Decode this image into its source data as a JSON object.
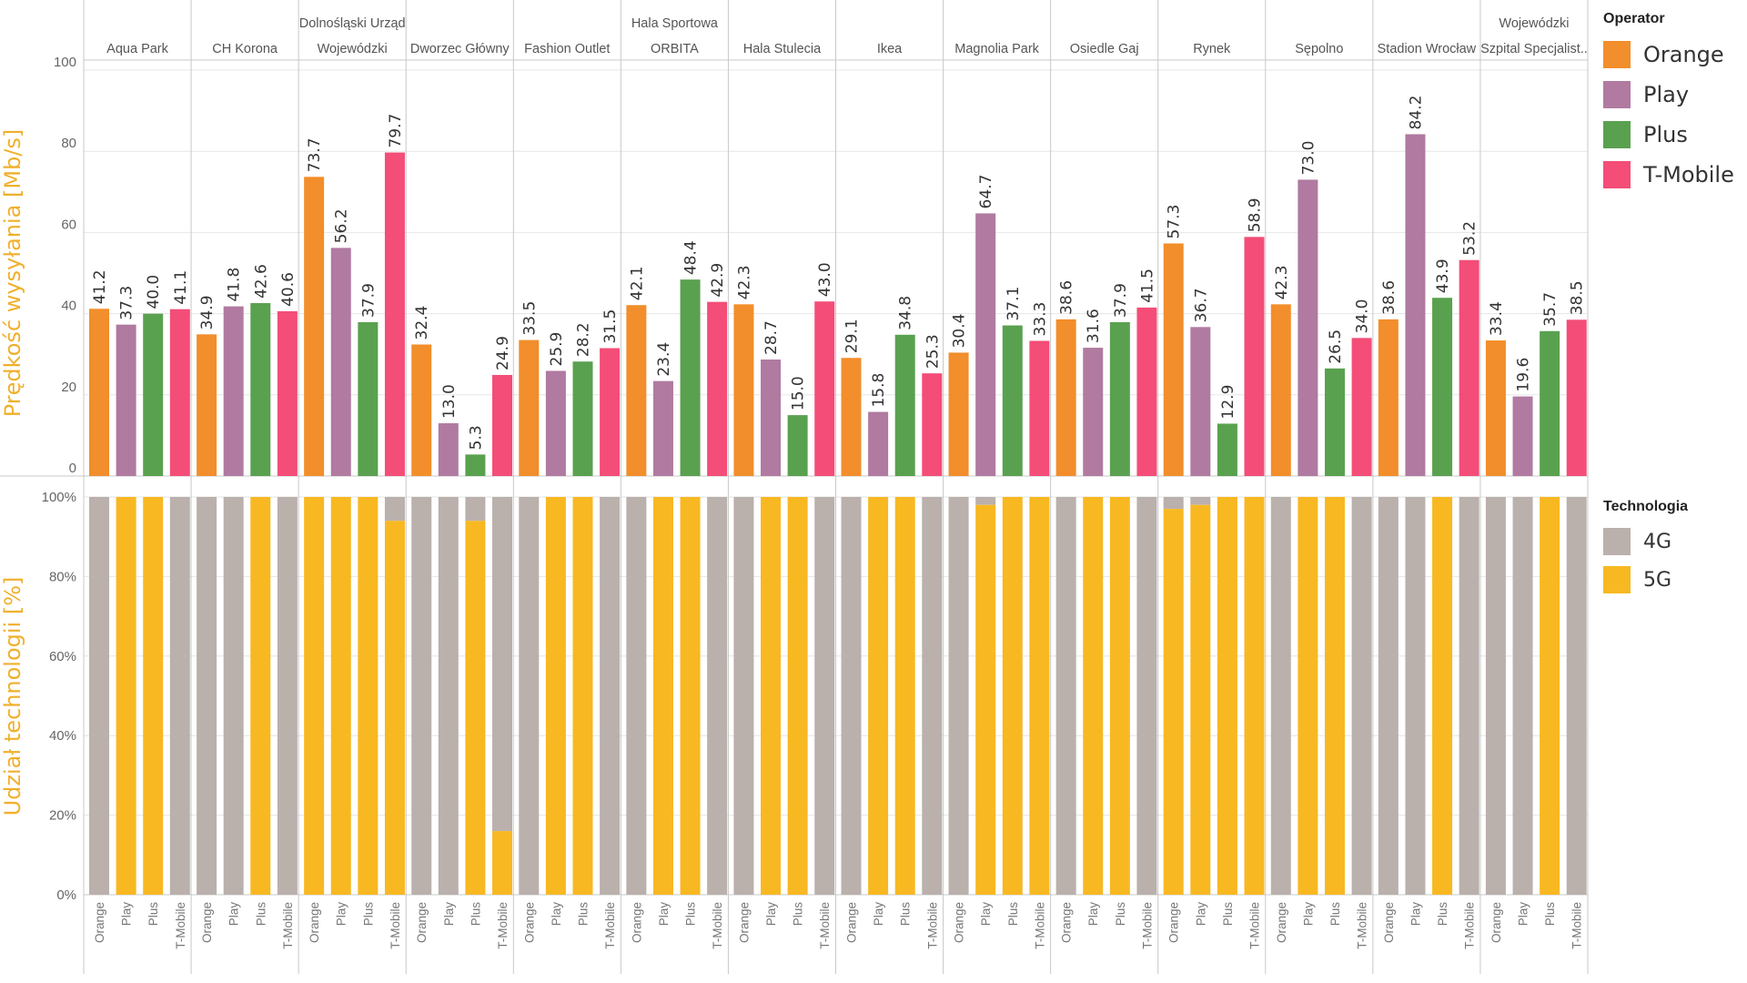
{
  "chart_data": [
    {
      "type": "bar",
      "ylabel": "Prędkość wysyłania [Mb/s]",
      "ylim": [
        0,
        100
      ],
      "yticks": [
        "0",
        "20",
        "40",
        "60",
        "80",
        "100"
      ],
      "operators": [
        "Orange",
        "Play",
        "Plus",
        "T-Mobile"
      ],
      "groups": [
        {
          "label": [
            "Aqua Park"
          ],
          "values": [
            41.2,
            37.3,
            40.0,
            41.1
          ],
          "value_labels": [
            "41.2",
            "37.3",
            "40.0",
            "41.1"
          ]
        },
        {
          "label": [
            "CH Korona"
          ],
          "values": [
            34.9,
            41.8,
            42.6,
            40.6
          ],
          "value_labels": [
            "34.9",
            "41.8",
            "42.6",
            "40.6"
          ]
        },
        {
          "label": [
            "Dolnośląski Urząd",
            "Wojewódzki"
          ],
          "values": [
            73.7,
            56.2,
            37.9,
            79.7
          ],
          "value_labels": [
            "73.7",
            "56.2",
            "37.9",
            "79.7"
          ]
        },
        {
          "label": [
            "Dworzec Główny"
          ],
          "values": [
            32.4,
            13.0,
            5.3,
            24.9
          ],
          "value_labels": [
            "32.4",
            "13.0",
            "5.3",
            "24.9"
          ]
        },
        {
          "label": [
            "Fashion Outlet"
          ],
          "values": [
            33.5,
            25.9,
            28.2,
            31.5
          ],
          "value_labels": [
            "33.5",
            "25.9",
            "28.2",
            "31.5"
          ]
        },
        {
          "label": [
            "Hala Sportowa",
            "ORBITA"
          ],
          "values": [
            42.1,
            23.4,
            48.4,
            42.9
          ],
          "value_labels": [
            "42.1",
            "23.4",
            "48.4",
            "42.9"
          ]
        },
        {
          "label": [
            "Hala Stulecia"
          ],
          "values": [
            42.3,
            28.7,
            15.0,
            43.0
          ],
          "value_labels": [
            "42.3",
            "28.7",
            "15.0",
            "43.0"
          ]
        },
        {
          "label": [
            "Ikea"
          ],
          "values": [
            29.1,
            15.8,
            34.8,
            25.3
          ],
          "value_labels": [
            "29.1",
            "15.8",
            "34.8",
            "25.3"
          ]
        },
        {
          "label": [
            "Magnolia Park"
          ],
          "values": [
            30.4,
            64.7,
            37.1,
            33.3
          ],
          "value_labels": [
            "30.4",
            "64.7",
            "37.1",
            "33.3"
          ]
        },
        {
          "label": [
            "Osiedle Gaj"
          ],
          "values": [
            38.6,
            31.6,
            37.9,
            41.5
          ],
          "value_labels": [
            "38.6",
            "31.6",
            "37.9",
            "41.5"
          ]
        },
        {
          "label": [
            "Rynek"
          ],
          "values": [
            57.3,
            36.7,
            12.9,
            58.9
          ],
          "value_labels": [
            "57.3",
            "36.7",
            "12.9",
            "58.9"
          ]
        },
        {
          "label": [
            "Sępolno"
          ],
          "values": [
            42.3,
            73.0,
            26.5,
            34.0
          ],
          "value_labels": [
            "42.3",
            "73.0",
            "26.5",
            "34.0"
          ]
        },
        {
          "label": [
            "Stadion Wrocław"
          ],
          "values": [
            38.6,
            84.2,
            43.9,
            53.2
          ],
          "value_labels": [
            "38.6",
            "84.2",
            "43.9",
            "53.2"
          ]
        },
        {
          "label": [
            "Wojewódzki",
            "Szpital Specjalist.."
          ],
          "values": [
            33.4,
            19.6,
            35.7,
            38.5
          ],
          "value_labels": [
            "33.4",
            "19.6",
            "35.7",
            "38.5"
          ]
        }
      ]
    },
    {
      "type": "bar",
      "stacked": true,
      "ylabel": "Udział technologii [%]",
      "ylim": [
        0,
        100
      ],
      "yticks": [
        "0%",
        "20%",
        "40%",
        "60%",
        "80%",
        "100%"
      ],
      "series": [
        {
          "name": "4G",
          "values_5g_complement": true
        },
        {
          "name": "5G",
          "values": [
            [
              0,
              100,
              100,
              0
            ],
            [
              0,
              0,
              100,
              0
            ],
            [
              100,
              100,
              100,
              94
            ],
            [
              0,
              0,
              94,
              16
            ],
            [
              0,
              100,
              100,
              0
            ],
            [
              0,
              100,
              100,
              0
            ],
            [
              0,
              100,
              100,
              0
            ],
            [
              0,
              100,
              100,
              0
            ],
            [
              0,
              98,
              100,
              100
            ],
            [
              0,
              100,
              100,
              0
            ],
            [
              97,
              98,
              100,
              100
            ],
            [
              0,
              100,
              100,
              0
            ],
            [
              0,
              0,
              100,
              0
            ],
            [
              0,
              0,
              100,
              0
            ]
          ]
        }
      ]
    }
  ],
  "legend_operator": {
    "title": "Operator",
    "items": [
      {
        "label": "Orange",
        "color": "#f28e2b"
      },
      {
        "label": "Play",
        "color": "#b07aa1"
      },
      {
        "label": "Plus",
        "color": "#59a14f"
      },
      {
        "label": "T-Mobile",
        "color": "#f34d78"
      }
    ]
  },
  "legend_technology": {
    "title": "Technologia",
    "items": [
      {
        "label": "4G",
        "color": "#bab0ac"
      },
      {
        "label": "5G",
        "color": "#f8b822"
      }
    ]
  },
  "colors": {
    "axis_title": "#f0b02c",
    "grid": "#e6e6e6",
    "separator": "#c8c8c8"
  }
}
